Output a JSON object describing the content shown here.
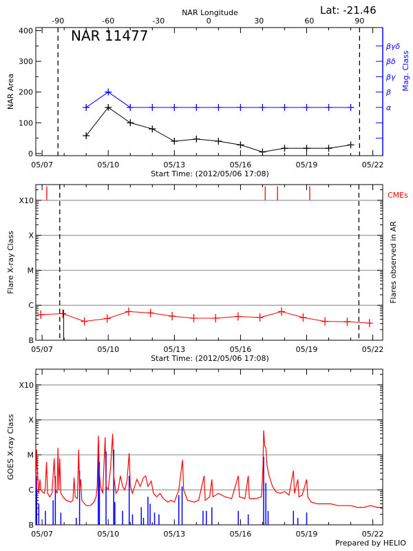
{
  "header": {
    "lat_label": "Lat: -21.46",
    "footer": "Prepared by HELIO"
  },
  "colors": {
    "area": "#000000",
    "mag": "#0000ff",
    "flare": "#ff0000",
    "cme": "#ff0000",
    "goes_long": "#ff0000",
    "goes_short": "#0000ff",
    "grid": "#999999"
  },
  "chart_data": [
    {
      "type": "line",
      "title": "NAR 11477",
      "xlabel": "Start Time: (2012/05/06 17:08)",
      "ylabel": "NAR Area",
      "y2label": "Mag. Class",
      "top_axis_label": "NAR Longitude",
      "xlim": [
        6.714,
        22.45
      ],
      "ylim": [
        -7,
        410
      ],
      "x_ticks": [
        {
          "v": 7,
          "l": "05/07"
        },
        {
          "v": 10,
          "l": "05/10"
        },
        {
          "v": 13,
          "l": "05/13"
        },
        {
          "v": 16,
          "l": "05/16"
        },
        {
          "v": 19,
          "l": "05/19"
        },
        {
          "v": 22,
          "l": "05/22"
        }
      ],
      "y_ticks": [
        0,
        100,
        200,
        300,
        400
      ],
      "longitude_ticks": [
        {
          "lon": -90,
          "day": 7.72
        },
        {
          "lon": -60,
          "day": 10.0
        },
        {
          "lon": -30,
          "day": 12.28
        },
        {
          "lon": 0,
          "day": 14.56
        },
        {
          "lon": 30,
          "day": 16.84
        },
        {
          "lon": 60,
          "day": 19.12
        },
        {
          "lon": 90,
          "day": 21.4
        }
      ],
      "limb_lines": [
        7.72,
        21.4
      ],
      "mag_class_ticks": [
        {
          "v": 50,
          "l": ""
        },
        {
          "v": 100,
          "l": ""
        },
        {
          "v": 150,
          "l": "α"
        },
        {
          "v": 200,
          "l": "β"
        },
        {
          "v": 250,
          "l": "βγ"
        },
        {
          "v": 300,
          "l": "βδ"
        },
        {
          "v": 350,
          "l": "βγδ"
        }
      ],
      "series": [
        {
          "key": "area",
          "x": [
            9,
            10,
            11,
            12,
            13,
            14,
            15,
            16,
            17,
            18,
            19,
            20,
            21
          ],
          "values": [
            58,
            150,
            100,
            80,
            40,
            47,
            40,
            28,
            5,
            17,
            17,
            17,
            28
          ]
        },
        {
          "key": "mag",
          "x": [
            9,
            10,
            11,
            12,
            13,
            14,
            15,
            16,
            17,
            18,
            19,
            20,
            21
          ],
          "values": [
            "α",
            "β",
            "α",
            "α",
            "α",
            "α",
            "α",
            "α",
            "α",
            "α",
            "α",
            "α",
            "α"
          ]
        }
      ]
    },
    {
      "type": "line",
      "xlabel": "Start Time: (2012/05/06 17:08)",
      "ylabel": "Flare X-ray Class",
      "y2label": "Flares observed in AR",
      "cme_label": "CMEs",
      "xlim": [
        6.714,
        22.45
      ],
      "ylim": [
        -7,
        -2.55
      ],
      "y_scale": "log",
      "y_ticks": [
        {
          "v": -7,
          "l": "B"
        },
        {
          "v": -6,
          "l": "C"
        },
        {
          "v": -5,
          "l": "M"
        },
        {
          "v": -4,
          "l": "X"
        },
        {
          "v": -3,
          "l": "X10"
        }
      ],
      "limb_lines": [
        7.8,
        21.37
      ],
      "flare_series": {
        "x": [
          6.94,
          7.94,
          8.92,
          9.95,
          10.93,
          11.92,
          12.9,
          13.88,
          14.87,
          15.89,
          16.88,
          17.86,
          18.84,
          19.83,
          20.84,
          21.85
        ],
        "values": [
          -6.27,
          -6.24,
          -6.46,
          -6.38,
          -6.18,
          -6.22,
          -6.31,
          -6.37,
          -6.37,
          -6.32,
          -6.35,
          -6.18,
          -6.35,
          -6.46,
          -6.47,
          -6.51
        ]
      },
      "flare_events": [
        {
          "x": 7.98,
          "value": -6.13
        }
      ],
      "cmes": [
        7.21,
        17.12,
        17.68,
        19.14
      ]
    },
    {
      "type": "line",
      "ylabel": "GOES X-ray Class",
      "xlim": [
        6.714,
        22.45
      ],
      "ylim": [
        -7,
        -2.55
      ],
      "y_scale": "log",
      "y_ticks": [
        {
          "v": -7,
          "l": "B"
        },
        {
          "v": -6,
          "l": "C"
        },
        {
          "v": -5,
          "l": "M"
        },
        {
          "v": -4,
          "l": "X"
        },
        {
          "v": -3,
          "l": "X10"
        }
      ],
      "long_channel": [
        [
          6.72,
          -6.0
        ],
        [
          6.75,
          -4.85
        ],
        [
          6.8,
          -5.6
        ],
        [
          6.85,
          -6.1
        ],
        [
          6.9,
          -5.7
        ],
        [
          6.95,
          -6.0
        ],
        [
          7.0,
          -6.05
        ],
        [
          7.1,
          -6.1
        ],
        [
          7.15,
          -5.9
        ],
        [
          7.2,
          -5.2
        ],
        [
          7.25,
          -6.1
        ],
        [
          7.35,
          -6.2
        ],
        [
          7.45,
          -6.1
        ],
        [
          7.55,
          -5.1
        ],
        [
          7.6,
          -6.0
        ],
        [
          7.68,
          -6.1
        ],
        [
          7.72,
          -4.8
        ],
        [
          7.76,
          -6.0
        ],
        [
          7.8,
          -5.1
        ],
        [
          7.85,
          -6.1
        ],
        [
          7.95,
          -6.2
        ],
        [
          8.1,
          -6.3
        ],
        [
          8.3,
          -6.35
        ],
        [
          8.4,
          -6.3
        ],
        [
          8.45,
          -5.65
        ],
        [
          8.5,
          -6.2
        ],
        [
          8.6,
          -6.25
        ],
        [
          8.66,
          -4.85
        ],
        [
          8.7,
          -6.0
        ],
        [
          8.75,
          -5.7
        ],
        [
          8.8,
          -6.3
        ],
        [
          9.0,
          -6.45
        ],
        [
          9.2,
          -6.45
        ],
        [
          9.35,
          -6.35
        ],
        [
          9.45,
          -6.2
        ],
        [
          9.5,
          -5.9
        ],
        [
          9.55,
          -4.45
        ],
        [
          9.6,
          -5.5
        ],
        [
          9.65,
          -5.9
        ],
        [
          9.75,
          -6.1
        ],
        [
          9.86,
          -4.5
        ],
        [
          9.9,
          -5.9
        ],
        [
          10.0,
          -6.0
        ],
        [
          10.1,
          -5.4
        ],
        [
          10.2,
          -4.4
        ],
        [
          10.25,
          -5.6
        ],
        [
          10.35,
          -6.1
        ],
        [
          10.45,
          -6.0
        ],
        [
          10.55,
          -5.6
        ],
        [
          10.65,
          -5.9
        ],
        [
          10.75,
          -6.0
        ],
        [
          10.85,
          -5.75
        ],
        [
          10.95,
          -4.95
        ],
        [
          11.0,
          -5.9
        ],
        [
          11.1,
          -6.1
        ],
        [
          11.3,
          -5.7
        ],
        [
          11.45,
          -5.9
        ],
        [
          11.6,
          -5.65
        ],
        [
          11.7,
          -5.6
        ],
        [
          11.8,
          -5.9
        ],
        [
          11.95,
          -5.75
        ],
        [
          12.05,
          -6.1
        ],
        [
          12.2,
          -6.2
        ],
        [
          12.35,
          -6.1
        ],
        [
          12.5,
          -6.25
        ],
        [
          12.7,
          -6.35
        ],
        [
          12.85,
          -6.3
        ],
        [
          13.0,
          -6.35
        ],
        [
          13.2,
          -6.0
        ],
        [
          13.3,
          -5.5
        ],
        [
          13.37,
          -5.15
        ],
        [
          13.42,
          -6.0
        ],
        [
          13.6,
          -6.3
        ],
        [
          13.9,
          -6.35
        ],
        [
          14.1,
          -6.3
        ],
        [
          14.35,
          -5.6
        ],
        [
          14.4,
          -6.3
        ],
        [
          14.6,
          -6.2
        ],
        [
          14.7,
          -5.7
        ],
        [
          14.75,
          -6.2
        ],
        [
          15.0,
          -6.1
        ],
        [
          15.3,
          -6.2
        ],
        [
          15.6,
          -6.25
        ],
        [
          15.9,
          -5.6
        ],
        [
          15.95,
          -6.2
        ],
        [
          16.2,
          -6.25
        ],
        [
          16.35,
          -5.6
        ],
        [
          16.4,
          -6.25
        ],
        [
          16.7,
          -6.25
        ],
        [
          16.95,
          -6.2
        ],
        [
          17.02,
          -5.3
        ],
        [
          17.05,
          -4.3
        ],
        [
          17.1,
          -4.75
        ],
        [
          17.15,
          -4.8
        ],
        [
          17.2,
          -5.3
        ],
        [
          17.3,
          -5.6
        ],
        [
          17.45,
          -5.9
        ],
        [
          17.6,
          -6.05
        ],
        [
          17.8,
          -6.1
        ],
        [
          18.0,
          -6.05
        ],
        [
          18.2,
          -6.15
        ],
        [
          18.4,
          -5.45
        ],
        [
          18.45,
          -6.1
        ],
        [
          18.6,
          -5.7
        ],
        [
          18.65,
          -6.2
        ],
        [
          18.8,
          -6.15
        ],
        [
          19.0,
          -5.7
        ],
        [
          19.05,
          -6.2
        ],
        [
          19.2,
          -6.35
        ],
        [
          19.5,
          -6.4
        ],
        [
          19.8,
          -6.4
        ],
        [
          20.1,
          -6.4
        ],
        [
          20.4,
          -6.45
        ],
        [
          20.7,
          -6.45
        ],
        [
          21.0,
          -6.45
        ],
        [
          21.3,
          -6.5
        ],
        [
          21.6,
          -6.5
        ],
        [
          21.9,
          -6.45
        ],
        [
          22.2,
          -6.5
        ],
        [
          22.45,
          -6.5
        ]
      ],
      "short_channel_spikes": [
        [
          6.75,
          -5.6
        ],
        [
          6.85,
          -6.4
        ],
        [
          7.15,
          -6.6
        ],
        [
          7.5,
          -6.3
        ],
        [
          7.6,
          -5.6
        ],
        [
          7.85,
          -6.65
        ],
        [
          8.55,
          -6.8
        ],
        [
          8.7,
          -5.45
        ],
        [
          9.55,
          -4.85
        ],
        [
          9.6,
          -5.2
        ],
        [
          9.9,
          -4.9
        ],
        [
          10.25,
          -4.85
        ],
        [
          10.3,
          -6.35
        ],
        [
          10.65,
          -6.6
        ],
        [
          10.95,
          -5.6
        ],
        [
          11.1,
          -6.7
        ],
        [
          11.5,
          -6.5
        ],
        [
          11.6,
          -6.8
        ],
        [
          11.8,
          -6.2
        ],
        [
          11.9,
          -6.4
        ],
        [
          12.1,
          -6.65
        ],
        [
          12.3,
          -6.7
        ],
        [
          13.2,
          -6.15
        ],
        [
          13.35,
          -5.9
        ],
        [
          14.3,
          -6.6
        ],
        [
          14.45,
          -6.6
        ],
        [
          14.7,
          -6.5
        ],
        [
          15.9,
          -6.6
        ],
        [
          16.35,
          -6.7
        ],
        [
          17.05,
          -5.05
        ],
        [
          17.15,
          -5.8
        ],
        [
          17.25,
          -6.6
        ],
        [
          18.4,
          -6.6
        ],
        [
          18.6,
          -6.8
        ],
        [
          19.0,
          -6.65
        ]
      ]
    }
  ]
}
